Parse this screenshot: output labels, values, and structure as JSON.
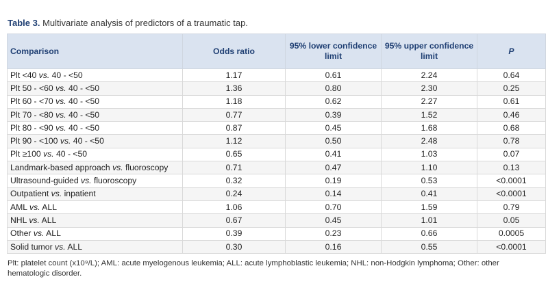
{
  "caption": {
    "label": "Table 3.",
    "text": " Multivariate analysis of predictors of a traumatic tap."
  },
  "table": {
    "headers": [
      "Comparison",
      "Odds ratio",
      "95% lower confidence limit",
      "95% upper confidence limit",
      "P"
    ],
    "rows": [
      {
        "a": "Plt <40 ",
        "vs": "vs.",
        "b": " 40 - <50",
        "or": "1.17",
        "lo": "0.61",
        "hi": "2.24",
        "p": "0.64"
      },
      {
        "a": "Plt 50 - <60 ",
        "vs": "vs.",
        "b": " 40 - <50",
        "or": "1.36",
        "lo": "0.80",
        "hi": "2.30",
        "p": "0.25"
      },
      {
        "a": "Plt 60 - <70 ",
        "vs": "vs.",
        "b": " 40 - <50",
        "or": "1.18",
        "lo": "0.62",
        "hi": "2.27",
        "p": "0.61"
      },
      {
        "a": "Plt 70 - <80 ",
        "vs": "vs.",
        "b": " 40 - <50",
        "or": "0.77",
        "lo": "0.39",
        "hi": "1.52",
        "p": "0.46"
      },
      {
        "a": "Plt 80 - <90 ",
        "vs": "vs.",
        "b": " 40 - <50",
        "or": "0.87",
        "lo": "0.45",
        "hi": "1.68",
        "p": "0.68"
      },
      {
        "a": "Plt 90 - <100 ",
        "vs": "vs.",
        "b": " 40 - <50",
        "or": "1.12",
        "lo": "0.50",
        "hi": "2.48",
        "p": "0.78"
      },
      {
        "a": "Plt ≥100 ",
        "vs": "vs.",
        "b": " 40 - <50",
        "or": "0.65",
        "lo": "0.41",
        "hi": "1.03",
        "p": "0.07"
      },
      {
        "a": "Landmark-based approach ",
        "vs": "vs.",
        "b": " fluoroscopy",
        "or": "0.71",
        "lo": "0.47",
        "hi": "1.10",
        "p": "0.13"
      },
      {
        "a": "Ultrasound-guided ",
        "vs": "vs.",
        "b": " fluoroscopy",
        "or": "0.32",
        "lo": "0.19",
        "hi": "0.53",
        "p": "<0.0001"
      },
      {
        "a": "Outpatient ",
        "vs": "vs.",
        "b": " inpatient",
        "or": "0.24",
        "lo": "0.14",
        "hi": "0.41",
        "p": "<0.0001"
      },
      {
        "a": "AML ",
        "vs": "vs.",
        "b": " ALL",
        "or": "1.06",
        "lo": "0.70",
        "hi": "1.59",
        "p": "0.79"
      },
      {
        "a": "NHL ",
        "vs": "vs.",
        "b": " ALL",
        "or": "0.67",
        "lo": "0.45",
        "hi": "1.01",
        "p": "0.05"
      },
      {
        "a": "Other ",
        "vs": "vs.",
        "b": " ALL",
        "or": "0.39",
        "lo": "0.23",
        "hi": "0.66",
        "p": "0.0005"
      },
      {
        "a": "Solid tumor ",
        "vs": "vs.",
        "b": " ALL",
        "or": "0.30",
        "lo": "0.16",
        "hi": "0.55",
        "p": "<0.0001"
      }
    ]
  },
  "footnote": "Plt: platelet count (x10⁹/L); AML: acute myelogenous leukemia; ALL: acute lymphoblastic leukemia; NHL: non-Hodgkin lymphoma; Other: other hematologic disorder."
}
